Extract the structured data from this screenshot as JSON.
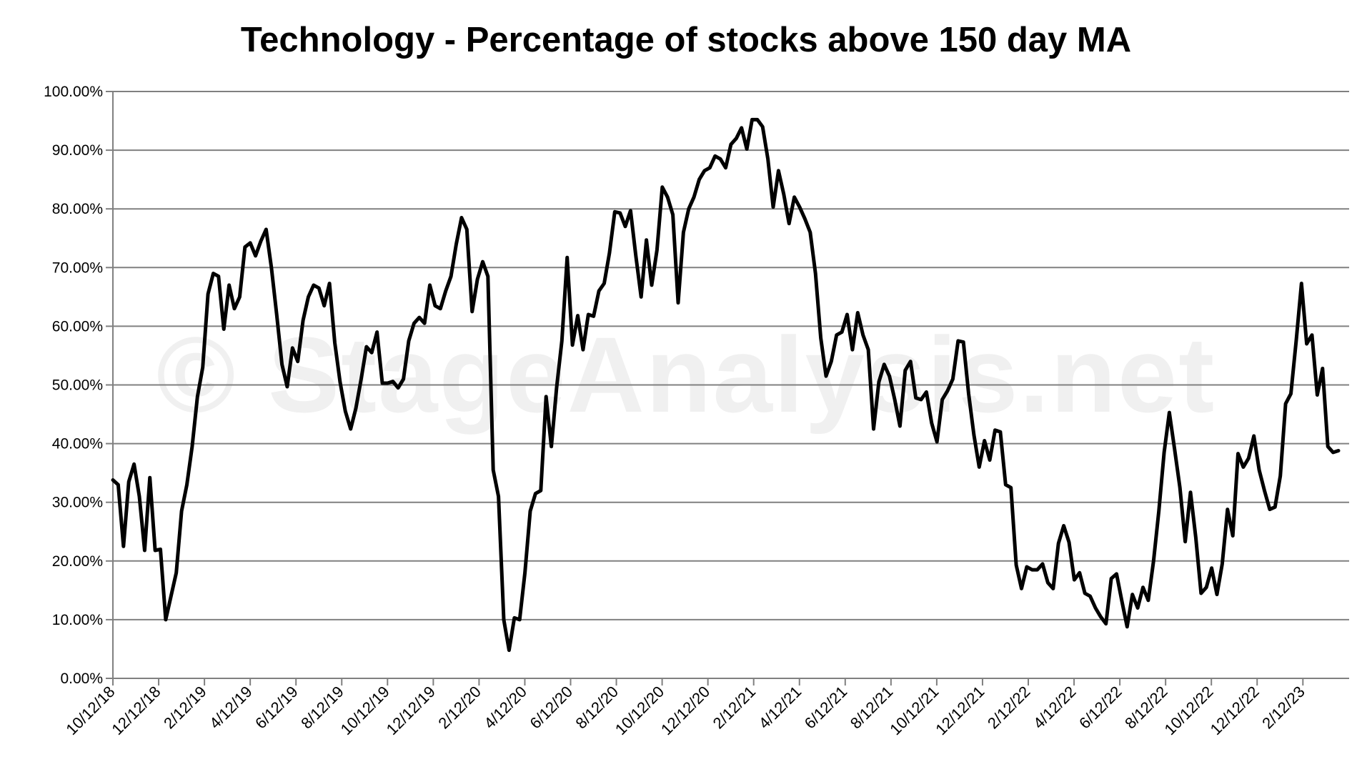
{
  "chart_data": {
    "type": "line",
    "title": "Technology - Percentage of stocks above 150 day MA",
    "watermark": "© StageAnalysis.net",
    "xlabel": "",
    "ylabel": "",
    "ylim": [
      0,
      100
    ],
    "y_ticks": [
      0,
      10,
      20,
      30,
      40,
      50,
      60,
      70,
      80,
      90,
      100
    ],
    "y_tick_labels": [
      "0.00%",
      "10.00%",
      "20.00%",
      "30.00%",
      "40.00%",
      "50.00%",
      "60.00%",
      "70.00%",
      "80.00%",
      "90.00%",
      "100.00%"
    ],
    "x_tick_labels": [
      "10/12/18",
      "12/12/18",
      "2/12/19",
      "4/12/19",
      "6/12/19",
      "8/12/19",
      "10/12/19",
      "12/12/19",
      "2/12/20",
      "4/12/20",
      "6/12/20",
      "8/12/20",
      "10/12/20",
      "12/12/20",
      "2/12/21",
      "4/12/21",
      "6/12/21",
      "8/12/21",
      "10/12/21",
      "12/12/21",
      "2/12/22",
      "4/12/22",
      "6/12/22",
      "8/12/22",
      "10/12/22",
      "12/12/22",
      "2/12/23"
    ],
    "grid": true,
    "line_color": "#000000",
    "grid_color": "#808080",
    "series": [
      {
        "values": [
          33.8,
          33.0,
          22.5,
          33.5,
          36.5,
          31.0,
          21.8,
          34.2,
          21.8,
          22.0,
          10.0,
          14.0,
          18.0,
          28.5,
          33.0,
          39.5,
          48.0,
          53.0,
          65.5,
          69.0,
          68.5,
          59.5,
          67.0,
          63.0,
          65.0,
          73.5,
          74.2,
          72.0,
          74.5,
          76.5,
          70.0,
          62.0,
          53.5,
          49.7,
          56.3,
          54.0,
          61.0,
          65.0,
          67.0,
          66.5,
          63.5,
          67.3,
          57.2,
          50.5,
          45.5,
          42.5,
          46.0,
          51.0,
          56.5,
          55.5,
          59.0,
          50.3,
          50.3,
          50.6,
          49.5,
          51.0,
          57.5,
          60.5,
          61.5,
          60.5,
          67.0,
          63.5,
          63.0,
          66.0,
          68.5,
          74.0,
          78.5,
          76.5,
          62.5,
          68.0,
          71.0,
          68.5,
          35.5,
          31.0,
          10.0,
          4.8,
          10.3,
          10.0,
          18.0,
          28.5,
          31.5,
          32.0,
          48.0,
          39.5,
          49.5,
          57.5,
          71.7,
          56.8,
          61.8,
          56.0,
          62.0,
          61.7,
          66.0,
          67.3,
          72.5,
          79.5,
          79.3,
          77.0,
          79.7,
          72.0,
          65.0,
          74.7,
          67.0,
          73.0,
          83.7,
          82.0,
          79.0,
          64.0,
          76.0,
          80.0,
          82.0,
          85.0,
          86.5,
          87.0,
          89.0,
          88.5,
          87.0,
          91.0,
          92.0,
          93.8,
          90.2,
          95.2,
          95.2,
          94.0,
          88.5,
          80.3,
          86.5,
          82.5,
          77.5,
          82.0,
          80.3,
          78.3,
          76.0,
          69.0,
          58.0,
          51.5,
          54.0,
          58.5,
          59.0,
          62.0,
          56.0,
          62.3,
          58.5,
          56.0,
          42.5,
          50.5,
          53.5,
          51.5,
          47.5,
          43.0,
          52.5,
          54.0,
          47.8,
          47.5,
          48.8,
          43.5,
          40.3,
          47.5,
          49.0,
          51.0,
          57.5,
          57.3,
          48.5,
          41.5,
          36.0,
          40.5,
          37.2,
          42.3,
          42.0,
          33.0,
          32.5,
          19.3,
          15.3,
          19.0,
          18.5,
          18.5,
          19.5,
          16.3,
          15.3,
          23.0,
          26.0,
          23.2,
          16.8,
          18.0,
          14.5,
          14.0,
          12.0,
          10.5,
          9.3,
          17.0,
          17.8,
          13.2,
          8.8,
          14.3,
          12.0,
          15.5,
          13.3,
          20.0,
          28.5,
          38.5,
          45.3,
          39.0,
          32.5,
          23.3,
          31.7,
          24.0,
          14.5,
          15.5,
          18.8,
          14.3,
          19.5,
          28.8,
          24.3,
          38.3,
          36.0,
          37.5,
          41.3,
          35.5,
          32.0,
          28.8,
          29.2,
          34.5,
          46.8,
          48.5,
          57.5,
          67.3,
          57.0,
          58.5,
          48.3,
          52.8,
          39.5,
          38.5,
          38.8
        ]
      }
    ]
  }
}
